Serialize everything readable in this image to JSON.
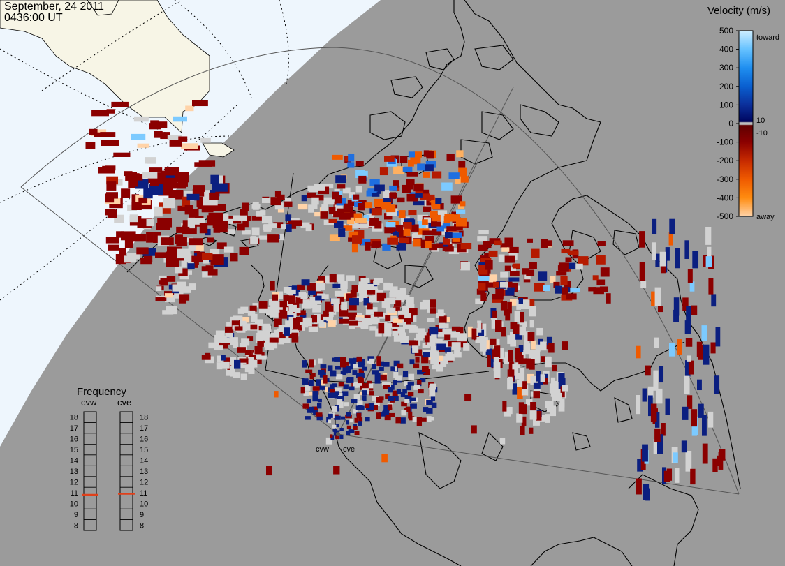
{
  "header": {
    "date": "September, 24 2011",
    "time": "0436:00 UT"
  },
  "velocity_scale": {
    "title": "Velocity (m/s)",
    "ticks": [
      "500",
      "400",
      "300",
      "200",
      "100",
      "0",
      "-100",
      "-200",
      "-300",
      "-400",
      "-500"
    ],
    "tick_values": [
      500,
      400,
      300,
      200,
      100,
      0,
      -100,
      -200,
      -300,
      -400,
      -500
    ],
    "toward_label": "toward",
    "away_label": "away",
    "pos_threshold": "10",
    "neg_threshold": "-10",
    "stops": [
      {
        "v": 500,
        "color": "#cfeeff"
      },
      {
        "v": 400,
        "color": "#66c2ff"
      },
      {
        "v": 300,
        "color": "#1f8ff0"
      },
      {
        "v": 200,
        "color": "#0a5fd0"
      },
      {
        "v": 100,
        "color": "#0b2f9a"
      },
      {
        "v": 20,
        "color": "#000a66"
      },
      {
        "v": 10,
        "color": "#000050"
      },
      {
        "v": 5,
        "color": "#bdbdbd"
      },
      {
        "v": -5,
        "color": "#bdbdbd"
      },
      {
        "v": -10,
        "color": "#600000"
      },
      {
        "v": -100,
        "color": "#8b0000"
      },
      {
        "v": -200,
        "color": "#c62a00"
      },
      {
        "v": -300,
        "color": "#ef5a00"
      },
      {
        "v": -400,
        "color": "#ff8c10"
      },
      {
        "v": -500,
        "color": "#ffd3a8"
      }
    ]
  },
  "frequency": {
    "title": "Frequency",
    "radars": [
      {
        "name": "cvw",
        "value": 10.8
      },
      {
        "name": "cve",
        "value": 10.9
      }
    ],
    "ticks": [
      "18",
      "17",
      "16",
      "15",
      "14",
      "13",
      "12",
      "11",
      "10",
      "9",
      "8"
    ],
    "tick_values": [
      18,
      17,
      16,
      15,
      14,
      13,
      12,
      11,
      10,
      9,
      8
    ],
    "marker_color": "#e0401a"
  },
  "radar_sites": [
    {
      "name": "cvw"
    },
    {
      "name": "cve"
    }
  ],
  "colors": {
    "ocean": "#9b9b9b",
    "daylight": "#eef6fd",
    "land_daylight": "#f7f5e6",
    "ground_scatter": "#d2d2d2",
    "coast": "#000000"
  }
}
